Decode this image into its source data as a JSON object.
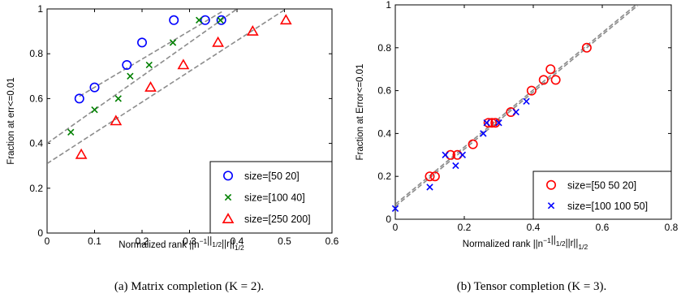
{
  "chart_data": [
    {
      "type": "scatter",
      "xlabel": "Normalized rank ||n^{−1}||_{1/2}||r||_{1/2}",
      "ylabel": "Fraction at err<=0.01",
      "caption": "(a) Matrix completion (K = 2).",
      "xlim": [
        0,
        0.6
      ],
      "ylim": [
        0,
        1
      ],
      "xticks": [
        "0",
        "0.1",
        "0.2",
        "0.3",
        "0.4",
        "0.5",
        "0.6"
      ],
      "yticks": [
        "0",
        "0.2",
        "0.4",
        "0.6",
        "0.8",
        "1"
      ],
      "legend_position": "bottom-right",
      "series": [
        {
          "name": "size=[50 20]",
          "marker": "circle",
          "color": "#0000ff",
          "x": [
            0.068,
            0.1,
            0.168,
            0.2,
            0.267,
            0.333,
            0.367
          ],
          "y": [
            0.6,
            0.65,
            0.75,
            0.85,
            0.95,
            0.95,
            0.95
          ],
          "fit": {
            "x": [
              0.068,
              0.37
            ],
            "y": [
              0.61,
              0.99
            ]
          }
        },
        {
          "name": "size=[100 40]",
          "marker": "x",
          "color": "#008000",
          "x": [
            0.05,
            0.1,
            0.15,
            0.175,
            0.215,
            0.265,
            0.32,
            0.365
          ],
          "y": [
            0.45,
            0.55,
            0.6,
            0.7,
            0.75,
            0.85,
            0.95,
            0.95
          ],
          "fit": {
            "x": [
              0,
              0.4
            ],
            "y": [
              0.4,
              1.0
            ]
          }
        },
        {
          "name": "size=[250 200]",
          "marker": "triangle",
          "color": "#ff0000",
          "x": [
            0.072,
            0.145,
            0.218,
            0.287,
            0.36,
            0.433,
            0.503
          ],
          "y": [
            0.35,
            0.5,
            0.65,
            0.75,
            0.85,
            0.9,
            0.95
          ],
          "fit": {
            "x": [
              0,
              0.503
            ],
            "y": [
              0.31,
              1.0
            ]
          }
        }
      ]
    },
    {
      "type": "scatter",
      "xlabel": "Normalized rank ||n^{−1}||_{1/2}||r||_{1/2}",
      "ylabel": "Fraction at Error<=0.01",
      "caption": "(b) Tensor completion (K = 3).",
      "xlim": [
        0,
        0.8
      ],
      "ylim": [
        0,
        1
      ],
      "xticks": [
        "0",
        "0.2",
        "0.4",
        "0.6",
        "0.8"
      ],
      "yticks": [
        "0",
        "0.2",
        "0.4",
        "0.6",
        "0.8",
        "1"
      ],
      "legend_position": "bottom-right",
      "series": [
        {
          "name": "size=[50 50 20]",
          "marker": "circle",
          "color": "#ff0000",
          "x": [
            0.1,
            0.115,
            0.16,
            0.18,
            0.225,
            0.27,
            0.28,
            0.29,
            0.335,
            0.395,
            0.43,
            0.45,
            0.465,
            0.555
          ],
          "y": [
            0.2,
            0.2,
            0.3,
            0.3,
            0.35,
            0.45,
            0.45,
            0.45,
            0.5,
            0.6,
            0.65,
            0.7,
            0.65,
            0.8
          ],
          "fit": {
            "x": [
              0,
              0.705
            ],
            "y": [
              0.06,
              1.0
            ]
          }
        },
        {
          "name": "size=[100 100 50]",
          "marker": "x",
          "color": "#0000ff",
          "x": [
            0.0,
            0.1,
            0.145,
            0.175,
            0.195,
            0.255,
            0.265,
            0.3,
            0.35,
            0.38
          ],
          "y": [
            0.05,
            0.15,
            0.3,
            0.25,
            0.3,
            0.4,
            0.45,
            0.45,
            0.5,
            0.55
          ],
          "fit": {
            "x": [
              0,
              0.705
            ],
            "y": [
              0.07,
              1.01
            ]
          }
        }
      ]
    }
  ]
}
